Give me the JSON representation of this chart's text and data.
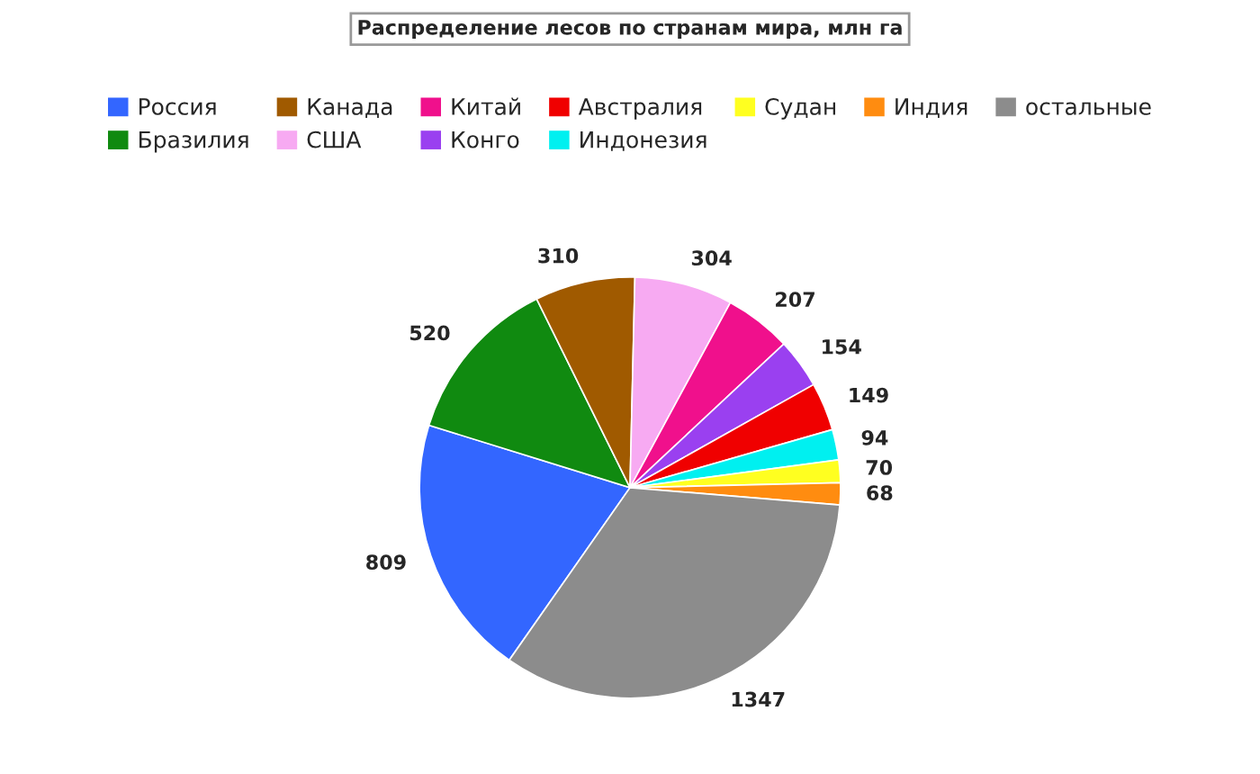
{
  "chart_data": {
    "type": "pie",
    "title": "Распределение лесов по странам мира, млн га",
    "categories": [
      "Россия",
      "Бразилия",
      "Канада",
      "США",
      "Китай",
      "Конго",
      "Австралия",
      "Индонезия",
      "Судан",
      "Индия",
      "остальные"
    ],
    "values": [
      809,
      520,
      310,
      304,
      207,
      154,
      149,
      94,
      70,
      68,
      1347
    ],
    "colors": [
      "#3366ff",
      "#108a10",
      "#a05a00",
      "#f7aaf2",
      "#f0108c",
      "#9a40f0",
      "#f00000",
      "#00f0f0",
      "#ffff20",
      "#ff8c10",
      "#8c8c8c"
    ],
    "data_labels": true,
    "legend": "top"
  }
}
